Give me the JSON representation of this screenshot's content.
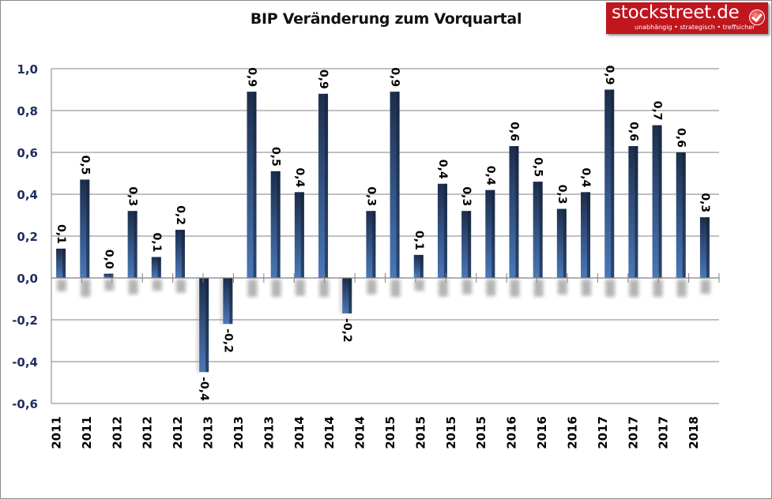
{
  "chart_data": {
    "type": "bar",
    "title": "BIP Veränderung zum Vorquartal",
    "xlabel": "",
    "ylabel": "",
    "ylim": [
      -0.6,
      1.0
    ],
    "yticks": [
      1.0,
      0.8,
      0.6,
      0.4,
      0.2,
      0.0,
      -0.2,
      -0.4,
      -0.6
    ],
    "ytick_labels": [
      "1,0",
      "0,8",
      "0,6",
      "0,4",
      "0,2",
      "0,0",
      "-0,2",
      "-0,4",
      "-0,6"
    ],
    "grid": true,
    "legend": "none",
    "xtick_labels": [
      "2011",
      "2011",
      "2012",
      "2012",
      "2012",
      "2013",
      "2013",
      "2013",
      "2014",
      "2014",
      "2014",
      "2015",
      "2015",
      "2015",
      "2015",
      "2016",
      "2016",
      "2016",
      "2017",
      "2017",
      "2017",
      "2018"
    ],
    "values": [
      0.14,
      0.47,
      0.02,
      0.32,
      0.1,
      0.23,
      -0.45,
      -0.22,
      0.89,
      0.51,
      0.41,
      0.88,
      -0.17,
      0.32,
      0.89,
      0.11,
      0.45,
      0.32,
      0.42,
      0.63,
      0.46,
      0.33,
      0.41,
      0.9,
      0.63,
      0.73,
      0.6,
      0.29
    ],
    "data_labels": [
      "0,1",
      "0,5",
      "0,0",
      "0,3",
      "0,1",
      "0,2",
      "-0,4",
      "-0,2",
      "0,9",
      "0,5",
      "0,4",
      "0,9",
      "-0,2",
      "0,3",
      "0,9",
      "0,1",
      "0,4",
      "0,3",
      "0,4",
      "0,6",
      "0,5",
      "0,3",
      "0,4",
      "0,9",
      "0,6",
      "0,7",
      "0,6",
      "0,3"
    ],
    "colors": {
      "bar_dark": "#1c2d4a",
      "bar_light": "#4a78b8",
      "axis_text": "#1f2f5c",
      "grid": "#808080"
    }
  },
  "logo": {
    "name": "stockstreet.de",
    "tagline": "unabhängig • strategisch • treffsicher",
    "icon": "checkmark-icon"
  }
}
